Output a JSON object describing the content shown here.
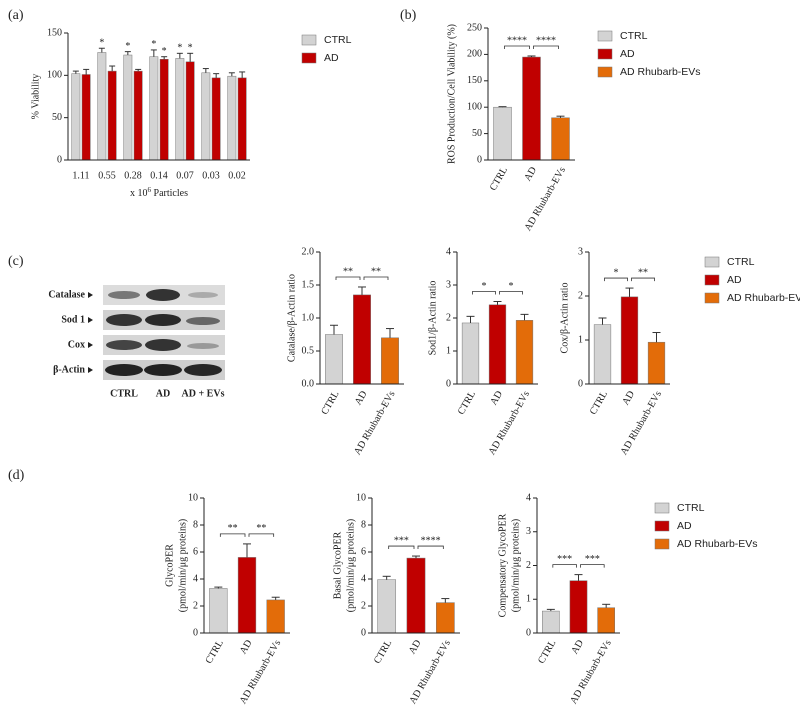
{
  "panel_labels": [
    "(a)",
    "(b)",
    "(c)",
    "(d)"
  ],
  "blot": {
    "bands": [
      "Catalase",
      "Sod 1",
      "Cox",
      "β-Actin"
    ],
    "lanes": [
      "CTRL",
      "AD",
      "AD + EVs"
    ]
  },
  "chart_data": [
    {
      "type": "bar",
      "ylabel": "% Viability",
      "xlabel_parts": [
        "x 10",
        "6",
        " Particles"
      ],
      "categories": [
        "1.11",
        "0.55",
        "0.28",
        "0.14",
        "0.07",
        "0.03",
        "0.02"
      ],
      "series": [
        {
          "name": "CTRL",
          "color": "#d3d3d3",
          "values": [
            102,
            127,
            124,
            122,
            120,
            103,
            99
          ],
          "errors": [
            3,
            5,
            4,
            8,
            6,
            5,
            4
          ],
          "stars": [
            null,
            "*",
            "*",
            "*",
            "*",
            null,
            null
          ]
        },
        {
          "name": "AD",
          "color": "#c00000",
          "values": [
            101,
            105,
            105,
            119,
            116,
            97,
            97
          ],
          "errors": [
            6,
            6,
            2,
            3,
            10,
            5,
            7
          ],
          "stars": [
            null,
            null,
            null,
            "*",
            "*",
            null,
            null
          ]
        }
      ],
      "ylim": [
        0,
        150
      ],
      "yticks": [
        0,
        50,
        100,
        150
      ],
      "legend": true
    },
    {
      "type": "bar",
      "ylabel": "ROS Production/Cell Viability (%)",
      "categories": [
        "CTRL",
        "AD",
        "AD Rhubarb-EVs"
      ],
      "colors": [
        "#d3d3d3",
        "#c00000",
        "#e36c09"
      ],
      "values": [
        100,
        195,
        80
      ],
      "errors": [
        1,
        2,
        3
      ],
      "significance": [
        {
          "groups": [
            0,
            1
          ],
          "label": "****"
        },
        {
          "groups": [
            1,
            2
          ],
          "label": "****"
        }
      ],
      "ylim": [
        0,
        250
      ],
      "yticks": [
        0,
        50,
        100,
        150,
        200,
        250
      ],
      "legend": true
    },
    {
      "type": "bar",
      "ylabel": "Catalase/β-Actin ratio",
      "categories": [
        "CTRL",
        "AD",
        "AD Rhubarb-EVs"
      ],
      "colors": [
        "#d3d3d3",
        "#c00000",
        "#e36c09"
      ],
      "values": [
        0.75,
        1.35,
        0.7
      ],
      "errors": [
        0.14,
        0.12,
        0.14
      ],
      "significance": [
        {
          "groups": [
            0,
            1
          ],
          "label": "**"
        },
        {
          "groups": [
            1,
            2
          ],
          "label": "**"
        }
      ],
      "ylim": [
        0,
        2
      ],
      "yticks": [
        {
          "value": 0,
          "label": "0.0"
        },
        {
          "value": 0.5,
          "label": "0.5"
        },
        {
          "value": 1,
          "label": "1.0"
        },
        {
          "value": 1.5,
          "label": "1.5"
        },
        {
          "value": 2,
          "label": "2.0"
        }
      ]
    },
    {
      "type": "bar",
      "ylabel": "Sod1/β-Actin ratio",
      "categories": [
        "CTRL",
        "AD",
        "AD Rhubarb-EVs"
      ],
      "colors": [
        "#d3d3d3",
        "#c00000",
        "#e36c09"
      ],
      "values": [
        1.85,
        2.4,
        1.93
      ],
      "errors": [
        0.2,
        0.1,
        0.18
      ],
      "significance": [
        {
          "groups": [
            0,
            1
          ],
          "label": "*"
        },
        {
          "groups": [
            1,
            2
          ],
          "label": "*"
        }
      ],
      "ylim": [
        0,
        4
      ],
      "yticks": [
        0,
        1,
        2,
        3,
        4
      ]
    },
    {
      "type": "bar",
      "ylabel": "Cox/β-Actin ratio",
      "categories": [
        "CTRL",
        "AD",
        "AD Rhubarb-EVs"
      ],
      "colors": [
        "#d3d3d3",
        "#c00000",
        "#e36c09"
      ],
      "values": [
        1.35,
        1.98,
        0.95
      ],
      "errors": [
        0.15,
        0.2,
        0.22
      ],
      "significance": [
        {
          "groups": [
            0,
            1
          ],
          "label": "*"
        },
        {
          "groups": [
            1,
            2
          ],
          "label": "**"
        }
      ],
      "ylim": [
        0,
        3
      ],
      "yticks": [
        0,
        1,
        2,
        3
      ],
      "legend": true
    },
    {
      "type": "bar",
      "ylabel": [
        "GlycoPER",
        "(pmol/min/μg proteins)"
      ],
      "categories": [
        "CTRL",
        "AD",
        "AD Rhubarb-EVs"
      ],
      "colors": [
        "#d3d3d3",
        "#c00000",
        "#e36c09"
      ],
      "values": [
        3.3,
        5.6,
        2.45
      ],
      "errors": [
        0.1,
        1.0,
        0.2
      ],
      "significance": [
        {
          "groups": [
            0,
            1
          ],
          "label": "**"
        },
        {
          "groups": [
            1,
            2
          ],
          "label": "**"
        }
      ],
      "ylim": [
        0,
        10
      ],
      "yticks": [
        0,
        2,
        4,
        6,
        8,
        10
      ]
    },
    {
      "type": "bar",
      "ylabel": [
        "Basal GlycoPER",
        "(pmol/min/μg proteins)"
      ],
      "categories": [
        "CTRL",
        "AD",
        "AD Rhubarb-EVs"
      ],
      "colors": [
        "#d3d3d3",
        "#c00000",
        "#e36c09"
      ],
      "values": [
        3.95,
        5.55,
        2.25
      ],
      "errors": [
        0.25,
        0.15,
        0.3
      ],
      "significance": [
        {
          "groups": [
            0,
            1
          ],
          "label": "***"
        },
        {
          "groups": [
            1,
            2
          ],
          "label": "****"
        }
      ],
      "ylim": [
        0,
        10
      ],
      "yticks": [
        0,
        2,
        4,
        6,
        8,
        10
      ]
    },
    {
      "type": "bar",
      "ylabel": [
        "Compensatory GlycoPER",
        "(pmol/min/μg proteins)"
      ],
      "categories": [
        "CTRL",
        "AD",
        "AD Rhubarb-EVs"
      ],
      "colors": [
        "#d3d3d3",
        "#c00000",
        "#e36c09"
      ],
      "values": [
        0.65,
        1.55,
        0.75
      ],
      "errors": [
        0.05,
        0.18,
        0.1
      ],
      "significance": [
        {
          "groups": [
            0,
            1
          ],
          "label": "***"
        },
        {
          "groups": [
            1,
            2
          ],
          "label": "***"
        }
      ],
      "ylim": [
        0,
        4
      ],
      "yticks": [
        0,
        1,
        2,
        3,
        4
      ],
      "legend": true
    }
  ]
}
